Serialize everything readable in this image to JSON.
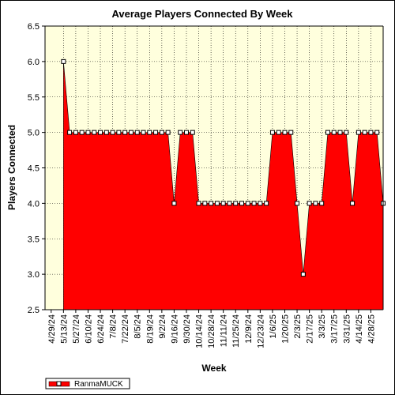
{
  "chart_data": {
    "type": "area",
    "title": "Average Players Connected By Week",
    "xlabel": "Week",
    "ylabel": "Players Connected",
    "ylim": [
      2.5,
      6.5
    ],
    "yticks": [
      "2.5",
      "3.0",
      "3.5",
      "4.0",
      "4.5",
      "5.0",
      "5.5",
      "6.0",
      "6.5"
    ],
    "x_tick_labels": [
      "4/29/24",
      "5/13/24",
      "5/27/24",
      "6/10/24",
      "6/24/24",
      "7/8/24",
      "7/22/24",
      "8/5/24",
      "8/19/24",
      "9/2/24",
      "9/16/24",
      "9/30/24",
      "10/14/24",
      "10/28/24",
      "11/11/24",
      "11/25/24",
      "12/9/24",
      "12/23/24",
      "1/6/25",
      "1/20/25",
      "2/3/25",
      "2/17/25",
      "3/3/25",
      "3/17/25",
      "3/31/25",
      "4/14/25",
      "4/28/25"
    ],
    "x_tick_step_weeks": 2,
    "first_point_week_index": 2,
    "series": [
      {
        "name": "RanmaMUCK",
        "color": "#ff0000",
        "values": [
          6.0,
          5.0,
          5.0,
          5.0,
          5.0,
          5.0,
          5.0,
          5.0,
          5.0,
          5.0,
          5.0,
          5.0,
          5.0,
          5.0,
          5.0,
          5.0,
          5.0,
          5.0,
          4.0,
          5.0,
          5.0,
          5.0,
          4.0,
          4.0,
          4.0,
          4.0,
          4.0,
          4.0,
          4.0,
          4.0,
          4.0,
          4.0,
          4.0,
          4.0,
          5.0,
          5.0,
          5.0,
          5.0,
          4.0,
          3.0,
          4.0,
          4.0,
          4.0,
          5.0,
          5.0,
          5.0,
          5.0,
          4.0,
          5.0,
          5.0,
          5.0,
          5.0,
          4.0
        ]
      }
    ],
    "grid": true,
    "legend_position": "bottom-left",
    "colors": {
      "plot_background": "#ffffdd",
      "fill": "#ff0000",
      "marker_fill": "#ffffff",
      "grid": "#000000"
    }
  }
}
